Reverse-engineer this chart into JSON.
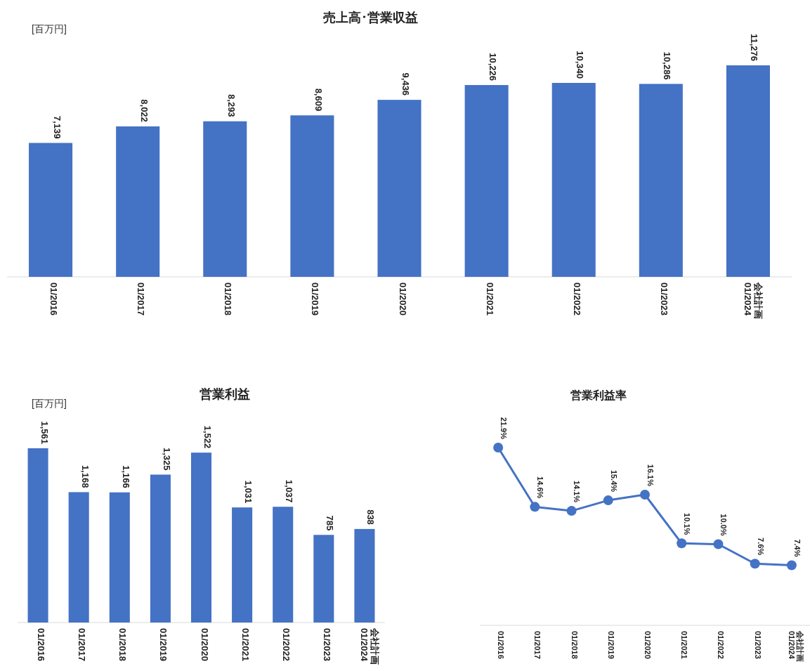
{
  "chart_data": [
    {
      "type": "bar",
      "title": "売上高･営業収益",
      "annotations": [
        "[百万円]"
      ],
      "categories": [
        "01/2016",
        "01/2017",
        "01/2018",
        "01/2019",
        "01/2020",
        "01/2021",
        "01/2022",
        "01/2023",
        "01/2024 会社計画"
      ],
      "values": [
        7139,
        8022,
        8293,
        8609,
        9436,
        10226,
        10340,
        10286,
        11276
      ],
      "value_labels": [
        "7,139",
        "8,022",
        "8,293",
        "8,609",
        "9,436",
        "10,226",
        "10,340",
        "10,286",
        "11,276"
      ],
      "color": "#4472c4"
    },
    {
      "type": "bar",
      "title": "営業利益",
      "annotations": [
        "[百万円]"
      ],
      "categories": [
        "01/2016",
        "01/2017",
        "01/2018",
        "01/2019",
        "01/2020",
        "01/2021",
        "01/2022",
        "01/2023",
        "01/2024 会社計画"
      ],
      "values": [
        1561,
        1168,
        1166,
        1325,
        1522,
        1031,
        1037,
        785,
        838
      ],
      "value_labels": [
        "1,561",
        "1,168",
        "1,166",
        "1,325",
        "1,522",
        "1,031",
        "1,037",
        "785",
        "838"
      ],
      "color": "#4472c4"
    },
    {
      "type": "line",
      "title": "営業利益率",
      "categories": [
        "01/2016",
        "01/2017",
        "01/2018",
        "01/2019",
        "01/2020",
        "01/2021",
        "01/2022",
        "01/2023",
        "01/2024 会社計画"
      ],
      "values": [
        21.9,
        14.6,
        14.1,
        15.4,
        16.1,
        10.1,
        10.0,
        7.6,
        7.4
      ],
      "value_labels": [
        "21.9%",
        "14.6%",
        "14.1%",
        "15.4%",
        "16.1%",
        "10.1%",
        "10.0%",
        "7.6%",
        "7.4%"
      ],
      "color": "#4472c4",
      "marker": "circle"
    }
  ]
}
